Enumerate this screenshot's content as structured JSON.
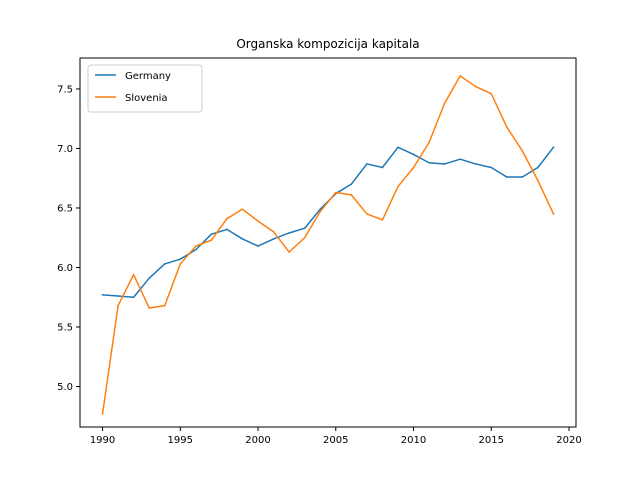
{
  "chart_data": {
    "type": "line",
    "title": "Organska kompozicija kapitala",
    "xlabel": "",
    "ylabel": "",
    "xlim": [
      1988.55,
      2020.45
    ],
    "ylim": [
      4.66,
      7.76
    ],
    "x_ticks": [
      1990,
      1995,
      2000,
      2005,
      2010,
      2015,
      2020
    ],
    "x_tick_labels": [
      "1990",
      "1995",
      "2000",
      "2005",
      "2010",
      "2015",
      "2020"
    ],
    "y_ticks": [
      5.0,
      5.5,
      6.0,
      6.5,
      7.0,
      7.5
    ],
    "y_tick_labels": [
      "5.0",
      "5.5",
      "6.0",
      "6.5",
      "7.0",
      "7.5"
    ],
    "grid": false,
    "legend_position": "upper-left",
    "x": [
      1990,
      1991,
      1992,
      1993,
      1994,
      1995,
      1996,
      1997,
      1998,
      1999,
      2000,
      2001,
      2002,
      2003,
      2004,
      2005,
      2006,
      2007,
      2008,
      2009,
      2010,
      2011,
      2012,
      2013,
      2014,
      2015,
      2016,
      2017,
      2018,
      2019
    ],
    "series": [
      {
        "name": "Germany",
        "color": "#1f77b4",
        "values": [
          5.77,
          5.76,
          5.75,
          5.91,
          6.03,
          6.07,
          6.15,
          6.28,
          6.32,
          6.24,
          6.18,
          6.24,
          6.29,
          6.33,
          6.49,
          6.62,
          6.7,
          6.87,
          6.84,
          7.01,
          6.95,
          6.88,
          6.87,
          6.91,
          6.87,
          6.84,
          6.76,
          6.76,
          6.84,
          7.01
        ]
      },
      {
        "name": "Slovenia",
        "color": "#ff7f0e",
        "values": [
          4.77,
          5.68,
          5.94,
          5.66,
          5.68,
          6.03,
          6.18,
          6.23,
          6.41,
          6.49,
          6.39,
          6.3,
          6.13,
          6.25,
          6.47,
          6.63,
          6.61,
          6.45,
          6.4,
          6.68,
          6.84,
          7.05,
          7.38,
          7.61,
          7.52,
          7.46,
          7.18,
          6.98,
          6.73,
          6.45
        ]
      }
    ]
  }
}
